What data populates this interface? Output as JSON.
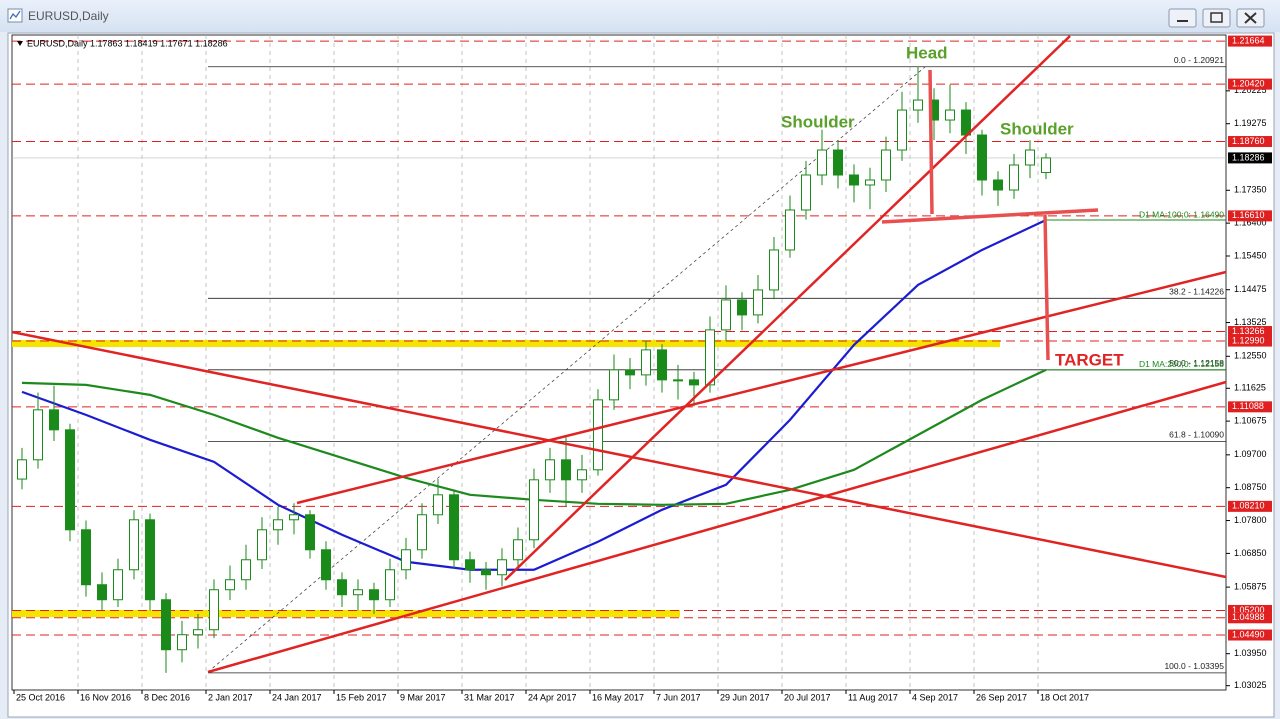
{
  "window": {
    "title": "EURUSD,Daily"
  },
  "chart_data": {
    "type": "candlestick",
    "header": "EURUSD,Daily  1.17863 1.18419 1.17671 1.18286",
    "categories": [
      "25 Oct 2016",
      null,
      null,
      null,
      "16 Nov 2016",
      null,
      null,
      null,
      "8 Dec 2016",
      null,
      null,
      null,
      "2 Jan 2017",
      null,
      null,
      null,
      "24 Jan 2017",
      null,
      null,
      null,
      "15 Feb 2017",
      null,
      null,
      null,
      "9 Mar 2017",
      null,
      null,
      null,
      "31 Mar 2017",
      null,
      null,
      null,
      "24 Apr 2017",
      null,
      null,
      null,
      "16 May 2017",
      null,
      null,
      null,
      "7 Jun 2017",
      null,
      null,
      null,
      "29 Jun 2017",
      null,
      null,
      null,
      "20 Jul 2017",
      null,
      null,
      null,
      "11 Aug 2017",
      null,
      null,
      null,
      "4 Sep 2017",
      null,
      null,
      null,
      "26 Sep 2017",
      null,
      null,
      null,
      "18 Oct 2017"
    ],
    "open": [
      1.09,
      1.09556,
      1.11001,
      1.10423,
      1.07533,
      1.05944,
      1.0551,
      1.06377,
      1.07822,
      1.0551,
      1.04065,
      1.04499,
      1.04643,
      1.05799,
      1.06088,
      1.06666,
      1.07533,
      1.07822,
      1.07967,
      1.06955,
      1.06088,
      1.05655,
      1.05799,
      1.0551,
      1.06377,
      1.06955,
      1.07967,
      1.08544,
      1.06666,
      1.06377,
      1.06233,
      1.06666,
      1.07244,
      1.08978,
      1.09556,
      1.08978,
      1.09267,
      1.1129,
      1.12157,
      1.12012,
      1.12735,
      1.11868,
      1.11868,
      1.11723,
      1.13313,
      1.14179,
      1.13746,
      1.14468,
      1.15624,
      1.1678,
      1.17792,
      1.18514,
      1.17792,
      1.17503,
      1.17647,
      1.18514,
      1.1967,
      1.19959,
      1.19381,
      1.1967,
      1.18948,
      1.17647,
      1.17358,
      1.18081,
      1.17863
    ],
    "high": [
      1.099,
      1.115,
      1.117,
      1.106,
      1.078,
      1.063,
      1.067,
      1.081,
      1.08,
      1.057,
      1.049,
      1.051,
      1.061,
      1.065,
      1.071,
      1.079,
      1.082,
      1.083,
      1.081,
      1.072,
      1.063,
      1.061,
      1.06,
      1.067,
      1.073,
      1.083,
      1.09,
      1.087,
      1.069,
      1.066,
      1.07,
      1.076,
      1.093,
      1.099,
      1.102,
      1.097,
      1.116,
      1.126,
      1.125,
      1.13,
      1.129,
      1.123,
      1.121,
      1.137,
      1.146,
      1.144,
      1.149,
      1.16,
      1.172,
      1.182,
      1.191,
      1.188,
      1.181,
      1.18,
      1.189,
      1.202,
      1.20921,
      1.203,
      1.204,
      1.199,
      1.191,
      1.179,
      1.184,
      1.188,
      1.18419
    ],
    "low": [
      1.087,
      1.093,
      1.101,
      1.072,
      1.056,
      1.052,
      1.053,
      1.061,
      1.052,
      1.03395,
      1.037,
      1.041,
      1.044,
      1.055,
      1.058,
      1.064,
      1.071,
      1.074,
      1.067,
      1.058,
      1.053,
      1.052,
      1.051,
      1.053,
      1.061,
      1.067,
      1.077,
      1.064,
      1.06,
      1.058,
      1.059,
      1.064,
      1.07,
      1.086,
      1.082,
      1.086,
      1.091,
      1.11,
      1.116,
      1.117,
      1.115,
      1.113,
      1.111,
      1.115,
      1.13,
      1.133,
      1.135,
      1.142,
      1.154,
      1.165,
      1.175,
      1.174,
      1.17,
      1.168,
      1.173,
      1.182,
      1.193,
      1.188,
      1.19,
      1.184,
      1.172,
      1.169,
      1.171,
      1.177,
      1.17671
    ],
    "close": [
      1.09556,
      1.11001,
      1.10423,
      1.07533,
      1.05944,
      1.0551,
      1.06377,
      1.07822,
      1.0551,
      1.04065,
      1.04499,
      1.04643,
      1.05799,
      1.06088,
      1.06666,
      1.07533,
      1.07822,
      1.07967,
      1.06955,
      1.06088,
      1.05655,
      1.05799,
      1.0551,
      1.06377,
      1.06955,
      1.07967,
      1.08544,
      1.06666,
      1.06377,
      1.06233,
      1.06666,
      1.07244,
      1.08978,
      1.09556,
      1.08978,
      1.09267,
      1.1129,
      1.12157,
      1.12012,
      1.12735,
      1.11868,
      1.11868,
      1.11723,
      1.13313,
      1.14179,
      1.13746,
      1.14468,
      1.15624,
      1.1678,
      1.17792,
      1.18514,
      1.17792,
      1.17503,
      1.17647,
      1.18514,
      1.1967,
      1.19959,
      1.19381,
      1.1967,
      1.18948,
      1.17647,
      1.17358,
      1.18081,
      1.18514,
      1.18286
    ],
    "candle_colors": {
      "line": "#1a8a1a",
      "up": "#ffffff",
      "down": "#1a8a1a"
    },
    "ylim": [
      1.029,
      1.2184
    ],
    "yticks": [
      1.20225,
      1.19275,
      {
        "value": 1.1735,
        "label": "1.17350"
      },
      {
        "value": 1.164,
        "label": "1.16400"
      },
      {
        "value": 1.1545,
        "label": "1.15450"
      },
      1.14475,
      1.13525,
      {
        "value": 1.1255,
        "label": "1.12550"
      },
      1.11625,
      1.10675,
      {
        "value": 1.097,
        "label": "1.09700"
      },
      {
        "value": 1.0875,
        "label": "1.08750"
      },
      {
        "value": 1.078,
        "label": "1.07800"
      },
      {
        "value": 1.0685,
        "label": "1.06850"
      },
      1.05875,
      {
        "value": 1.0395,
        "label": "1.03950"
      },
      1.03025
    ],
    "levels": [
      1.21664,
      {
        "value": 1.2042,
        "label": "1.20420"
      },
      {
        "value": 1.1876,
        "label": "1.18760"
      },
      {
        "value": 1.1661,
        "label": "1.16610"
      },
      1.13266,
      {
        "value": 1.1299,
        "label": "1.12990"
      },
      1.11088,
      {
        "value": 1.0821,
        "label": "1.08210"
      },
      {
        "value": 1.052,
        "label": "1.05200"
      },
      1.04988,
      {
        "value": 1.0449,
        "label": "1.04490"
      }
    ],
    "level_color": "#e02020",
    "current_price": 1.18286,
    "moving_averages": [
      {
        "label": "D1 MA:100;0: 1.16490",
        "color": "#1c1cd0",
        "x": [
          0,
          4,
          8,
          12,
          16,
          20,
          24,
          28,
          32,
          36,
          40,
          44,
          48,
          52,
          56,
          60,
          64
        ],
        "values": [
          1.11521,
          1.10856,
          1.10134,
          1.09498,
          1.08255,
          1.07388,
          1.06608,
          1.06377,
          1.06377,
          1.07186,
          1.08111,
          1.08833,
          1.10712,
          1.12879,
          1.14613,
          1.15624,
          1.1649
        ]
      },
      {
        "label": "D1 MA:200;0: 1.12158",
        "color": "#1d8a1d",
        "x": [
          0,
          4,
          8,
          12,
          16,
          20,
          24,
          28,
          32,
          36,
          40,
          44,
          48,
          52,
          56,
          60,
          64
        ],
        "values": [
          1.11781,
          1.11723,
          1.11434,
          1.10856,
          1.10192,
          1.09614,
          1.09036,
          1.08544,
          1.084,
          1.08284,
          1.08255,
          1.08284,
          1.08689,
          1.09267,
          1.10278,
          1.1129,
          1.12158
        ]
      }
    ],
    "fibonacci": [
      {
        "label": "0.0 - 1.20921",
        "value": 1.20921
      },
      {
        "label": "38.2 - 1.14226",
        "value": 1.14226
      },
      {
        "label": "50.0 - 1.12158",
        "value": 1.12158
      },
      {
        "label": "61.8 - 1.10090",
        "value": 1.1009
      },
      {
        "label": "100.0 - 1.03395",
        "value": 1.03395
      }
    ],
    "annotations": {
      "head": "Head",
      "left_shoulder": "Shoulder",
      "right_shoulder": "Shoulder",
      "target": "TARGET"
    }
  }
}
